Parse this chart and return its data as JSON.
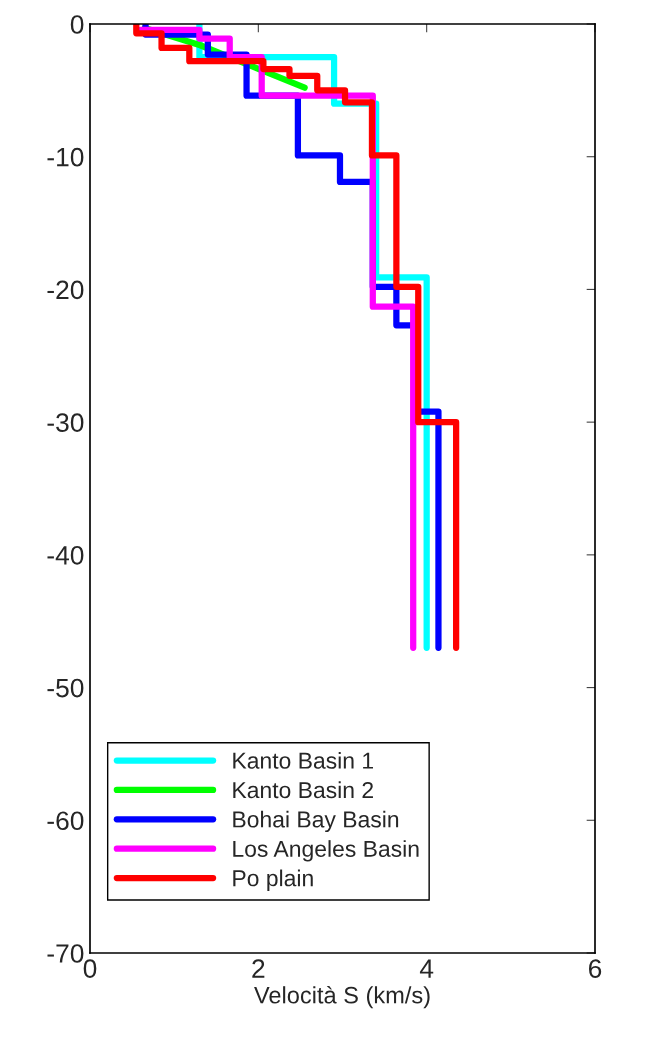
{
  "chart_data": {
    "type": "line",
    "xlabel": "Velocità S (km/s)",
    "xlim": [
      0,
      6
    ],
    "xticks": [
      0,
      2,
      4,
      6
    ],
    "ylim": [
      -70,
      0
    ],
    "yticks": [
      -70,
      -60,
      -50,
      -40,
      -30,
      -20,
      -10,
      0
    ],
    "grid": false,
    "legend": "bottom",
    "marker": "none",
    "line_style": "solid",
    "series": [
      {
        "name": "Kanto Basin 1",
        "color": "#00ffff",
        "x": [
          1.3,
          1.3,
          2.9,
          2.9,
          3.4,
          3.4,
          4.0,
          4.0
        ],
        "values": [
          0,
          -2.5,
          -2.5,
          -6.0,
          -6.0,
          -19.1,
          -19.1,
          -47
        ]
      },
      {
        "name": "Kanto Basin 2",
        "color": "#00ff00",
        "x": [
          0.65,
          1.31,
          2.55
        ],
        "values": [
          -0.3,
          -1.6,
          -4.8
        ]
      },
      {
        "name": "Bohai Bay Basin",
        "color": "#0000ff",
        "x": [
          0.66,
          0.66,
          1.4,
          1.4,
          1.86,
          1.86,
          2.47,
          2.47,
          2.97,
          2.97,
          3.36,
          3.36,
          3.64,
          3.64,
          3.87,
          3.87,
          4.14,
          4.14
        ],
        "values": [
          0,
          -0.8,
          -0.8,
          -2.3,
          -2.3,
          -5.4,
          -5.4,
          -9.9,
          -9.9,
          -11.9,
          -11.9,
          -19.8,
          -19.8,
          -22.7,
          -22.7,
          -29.2,
          -29.2,
          -47
        ]
      },
      {
        "name": "Los Angeles Basin",
        "color": "#ff00ff",
        "x": [
          0.6,
          1.3,
          1.3,
          1.66,
          1.66,
          2.04,
          2.04,
          3.36,
          3.36,
          3.84,
          3.84
        ],
        "values": [
          -0.45,
          -0.45,
          -1.1,
          -1.1,
          -2.5,
          -2.5,
          -5.4,
          -5.4,
          -21.3,
          -21.3,
          -47
        ]
      },
      {
        "name": "Po plain",
        "color": "#ff0000",
        "x": [
          0.55,
          0.55,
          0.85,
          0.85,
          1.18,
          1.18,
          2.06,
          2.06,
          2.37,
          2.37,
          2.7,
          2.7,
          3.03,
          3.03,
          3.35,
          3.35,
          3.64,
          3.64,
          3.9,
          3.9,
          4.35,
          4.35
        ],
        "values": [
          0,
          -0.7,
          -0.7,
          -1.8,
          -1.8,
          -2.8,
          -2.8,
          -3.4,
          -3.4,
          -3.9,
          -3.9,
          -5.0,
          -5.0,
          -5.9,
          -5.9,
          -9.9,
          -9.9,
          -19.8,
          -19.8,
          -30.0,
          -30.0,
          -47
        ]
      }
    ]
  }
}
